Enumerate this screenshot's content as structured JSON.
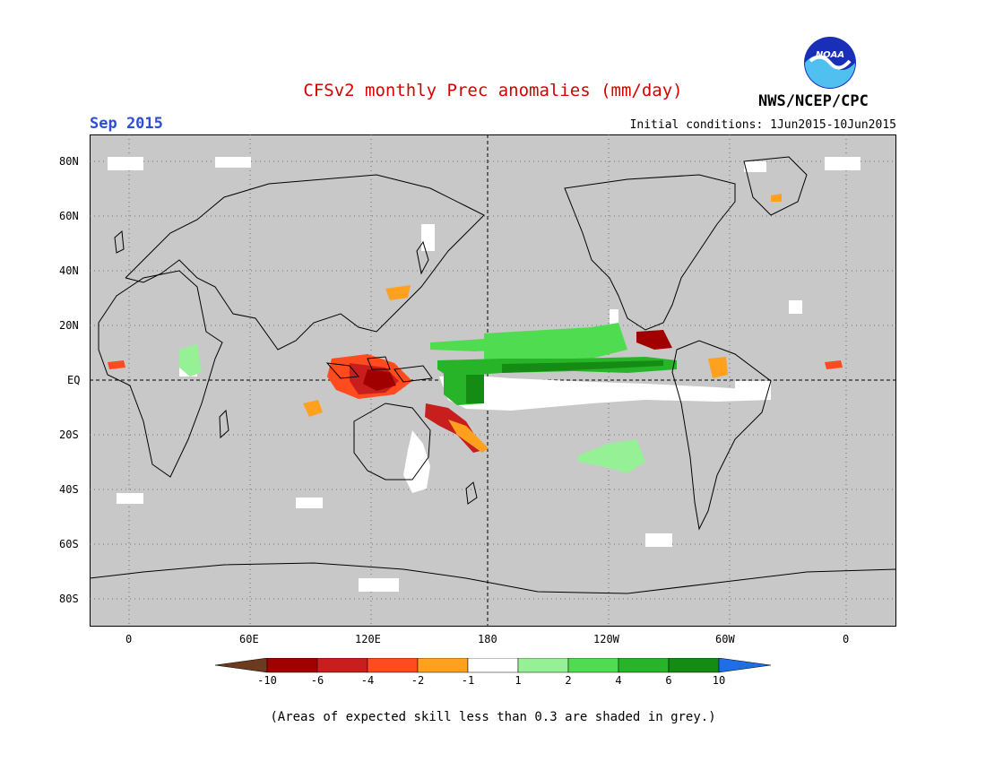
{
  "header": {
    "title": "CFSv2 monthly Prec anomalies (mm/day)",
    "month": "Sep 2015",
    "initial_conditions": "Initial conditions: 1Jun2015-10Jun2015",
    "agency": "NWS/NCEP/CPC",
    "logo_text": "NOAA"
  },
  "axes": {
    "lat_labels": [
      "80N",
      "60N",
      "40N",
      "20N",
      "EQ",
      "20S",
      "40S",
      "60S",
      "80S"
    ],
    "lon_labels": [
      "0",
      "60E",
      "120E",
      "180",
      "120W",
      "60W",
      "0"
    ]
  },
  "colorbar": {
    "labels": [
      "-10",
      "-6",
      "-4",
      "-2",
      "-1",
      "1",
      "2",
      "4",
      "6",
      "10"
    ],
    "colors": [
      "#6b3a1f",
      "#a00000",
      "#c81e1e",
      "#ff4b1e",
      "#ffa01e",
      "#ffffff",
      "#96f096",
      "#50dc50",
      "#28b428",
      "#148c14",
      "#1e6ee6"
    ]
  },
  "note": "(Areas of expected skill less than 0.3 are shaded in grey.)",
  "map_colors": {
    "background": "#c8c8c8",
    "coast": "#000000"
  }
}
